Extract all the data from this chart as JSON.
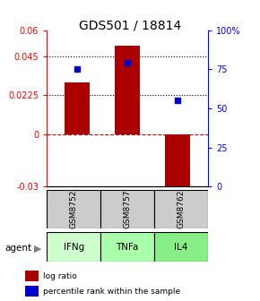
{
  "title": "GDS501 / 18814",
  "categories": [
    "GSM8752",
    "GSM8757",
    "GSM8762"
  ],
  "agents": [
    "IFNg",
    "TNFa",
    "IL4"
  ],
  "log_ratios": [
    0.03,
    0.051,
    -0.03
  ],
  "percentile_ranks": [
    0.75,
    0.79,
    0.55
  ],
  "ylim_left": [
    -0.03,
    0.06
  ],
  "ylim_right": [
    0.0,
    1.0
  ],
  "yticks_left": [
    -0.03,
    0,
    0.0225,
    0.045,
    0.06
  ],
  "ytick_labels_left": [
    "-0.03",
    "0",
    "0.0225",
    "0.045",
    "0.06"
  ],
  "yticks_right": [
    0.0,
    0.25,
    0.5,
    0.75,
    1.0
  ],
  "ytick_labels_right": [
    "0",
    "25",
    "50",
    "75",
    "100%"
  ],
  "hlines": [
    0.045,
    0.0225
  ],
  "bar_color": "#aa0000",
  "dot_color": "#0000cc",
  "agent_colors": [
    "#aaffaa",
    "#aaffaa",
    "#aaffaa"
  ],
  "gsm_color": "#cccccc",
  "zero_line_color": "#cc0000",
  "bar_width": 0.5
}
